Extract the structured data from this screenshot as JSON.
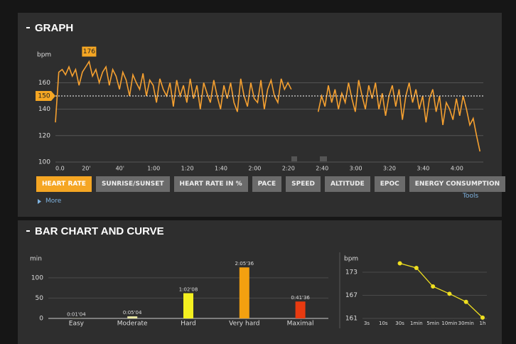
{
  "sections": [
    "GRAPH",
    "BAR CHART AND CURVE"
  ],
  "tabs": [
    {
      "label": "HEART RATE",
      "active": true
    },
    {
      "label": "SUNRISE/SUNSET",
      "active": false
    },
    {
      "label": "HEART RATE IN %",
      "active": false
    },
    {
      "label": "PACE",
      "active": false
    },
    {
      "label": "SPEED",
      "active": false
    },
    {
      "label": "ALTITUDE",
      "active": false
    },
    {
      "label": "EPOC",
      "active": false
    },
    {
      "label": "ENERGY CONSUMPTION",
      "active": false
    }
  ],
  "more": "More",
  "tools": "Tools",
  "chart_data": [
    {
      "type": "line",
      "ylabel": "bpm",
      "color": "#f5a030",
      "x": [
        0,
        2,
        4,
        6,
        8,
        10,
        12,
        14,
        16,
        18,
        20,
        22,
        24,
        26,
        28,
        30,
        32,
        34,
        36,
        38,
        40,
        42,
        44,
        46,
        48,
        50,
        52,
        54,
        56,
        58,
        60,
        62,
        64,
        66,
        68,
        70,
        72,
        74,
        76,
        78,
        80,
        82,
        84,
        86,
        88,
        90,
        92,
        94,
        96,
        98,
        100,
        102,
        104,
        106,
        108,
        110,
        112,
        114,
        116,
        118,
        120,
        122,
        124,
        126,
        128,
        130,
        132,
        134,
        136,
        138,
        140,
        142,
        156,
        158,
        160,
        162,
        164,
        166,
        168,
        170,
        172,
        174,
        176,
        178,
        180,
        182,
        184,
        186,
        188,
        190,
        192,
        194,
        196,
        198,
        200,
        202,
        204,
        206,
        208,
        210,
        212,
        214,
        216,
        218,
        220,
        222,
        224,
        226,
        228,
        230,
        232,
        234,
        236,
        238,
        240,
        242,
        244,
        246,
        248,
        250,
        252
      ],
      "values": [
        130,
        168,
        170,
        166,
        172,
        165,
        170,
        158,
        168,
        172,
        176,
        165,
        170,
        160,
        168,
        172,
        158,
        170,
        165,
        155,
        168,
        162,
        150,
        166,
        160,
        155,
        167,
        150,
        162,
        158,
        145,
        163,
        155,
        150,
        160,
        142,
        162,
        150,
        158,
        145,
        163,
        148,
        158,
        140,
        160,
        152,
        145,
        162,
        150,
        140,
        158,
        148,
        160,
        145,
        138,
        163,
        150,
        142,
        160,
        148,
        145,
        162,
        140,
        155,
        162,
        150,
        145,
        163,
        155,
        160,
        155,
        null,
        138,
        150,
        142,
        158,
        145,
        155,
        140,
        152,
        145,
        160,
        148,
        138,
        162,
        150,
        140,
        158,
        148,
        160,
        140,
        152,
        135,
        150,
        158,
        142,
        155,
        132,
        150,
        160,
        145,
        155,
        140,
        150,
        130,
        148,
        155,
        138,
        150,
        128,
        145,
        140,
        132,
        148,
        135,
        150,
        140,
        128,
        133,
        120,
        108
      ],
      "xlim": [
        0,
        254
      ],
      "ylim": [
        100,
        186
      ],
      "xticks": [
        {
          "value": 0,
          "label": "0.0"
        },
        {
          "value": 20,
          "label": "20'"
        },
        {
          "value": 40,
          "label": "40'"
        },
        {
          "value": 60,
          "label": "1:00"
        },
        {
          "value": 80,
          "label": "1:20"
        },
        {
          "value": 100,
          "label": "1:40"
        },
        {
          "value": 120,
          "label": "2:00"
        },
        {
          "value": 140,
          "label": "2:20"
        },
        {
          "value": 160,
          "label": "2:40"
        },
        {
          "value": 180,
          "label": "3:00"
        },
        {
          "value": 200,
          "label": "3:20"
        },
        {
          "value": 220,
          "label": "3:40"
        },
        {
          "value": 240,
          "label": "4:00"
        }
      ],
      "yticks": [
        100,
        120,
        140,
        160
      ],
      "reference": 150,
      "max_marker": {
        "x": 20,
        "value": 176
      },
      "grid": true
    },
    {
      "type": "bar",
      "ylabel": "min",
      "categories": [
        "Easy",
        "Moderate",
        "Hard",
        "Very hard",
        "Maximal"
      ],
      "values": [
        1.0667,
        5.0667,
        62.133,
        125.6,
        41.6
      ],
      "value_labels": [
        "0:01'04",
        "0:05'04",
        "1:02'08",
        "2:05'36",
        "0:41'36"
      ],
      "colors": [
        "#9a9a80",
        "#e8e6a0",
        "#f4f020",
        "#f3a010",
        "#e83a10"
      ],
      "ylim": [
        0,
        147
      ],
      "yticks": [
        0,
        50,
        100
      ],
      "grid": true
    },
    {
      "type": "line",
      "ylabel": "bpm",
      "color": "#f0e020",
      "categories": [
        "3s",
        "10s",
        "30s",
        "1min",
        "5min",
        "10min",
        "30min",
        "1h"
      ],
      "values": [
        null,
        null,
        175.3,
        174.1,
        169.3,
        167.4,
        165.3,
        161.2
      ],
      "ylim": [
        161,
        176.5
      ],
      "yticks": [
        161,
        167,
        173
      ],
      "grid": true
    }
  ]
}
